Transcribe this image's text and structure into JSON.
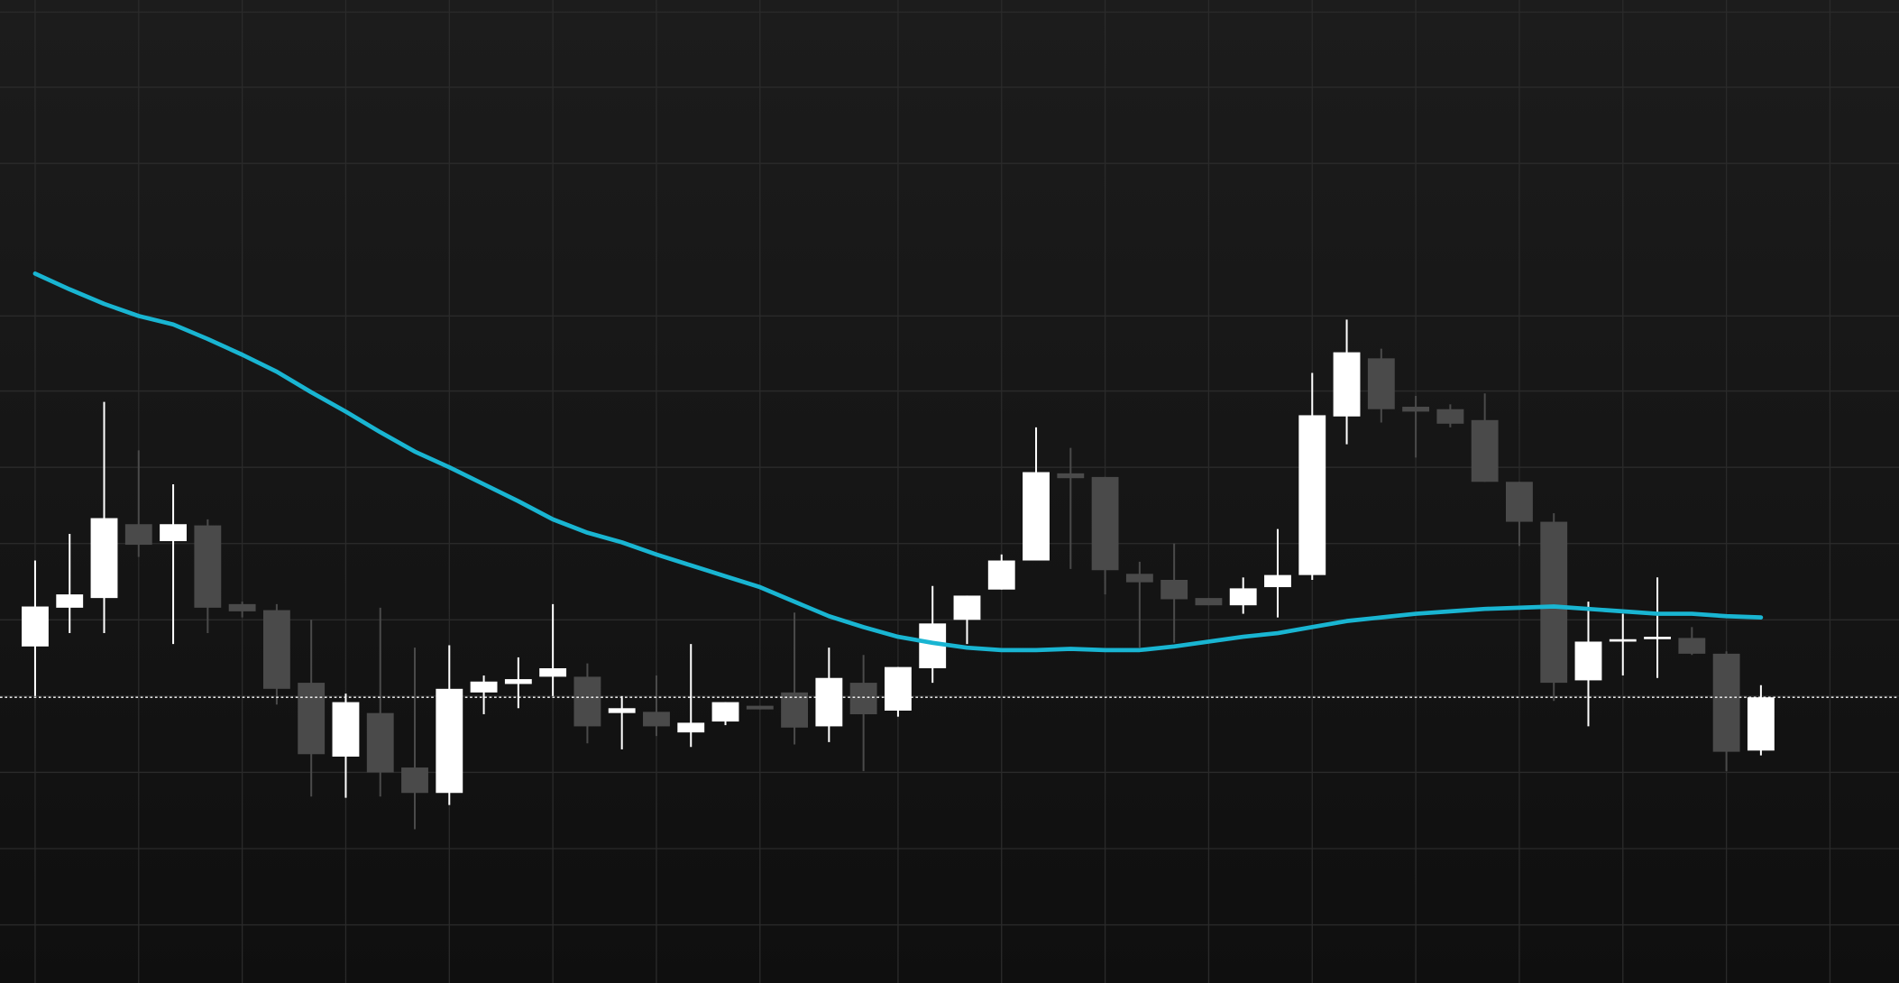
{
  "chart_data": {
    "type": "candlestick",
    "categories": [
      null,
      null,
      null,
      null,
      null,
      null,
      null,
      null,
      null,
      null,
      null,
      null,
      null,
      null,
      null,
      null,
      null,
      null,
      null,
      null,
      null,
      null,
      null,
      null,
      null,
      null,
      null,
      null,
      null,
      null,
      null,
      null,
      null,
      null,
      null,
      null,
      null,
      null,
      null,
      null,
      null,
      null,
      null,
      null,
      null,
      null,
      null,
      null,
      null,
      null,
      null
    ],
    "open": [
      278,
      310,
      318,
      379,
      365,
      378,
      313,
      308,
      248,
      187,
      223,
      178,
      157,
      240,
      247,
      253,
      253,
      223,
      224,
      207,
      216,
      229,
      240,
      212,
      248,
      225,
      260,
      300,
      325,
      349,
      421,
      418,
      338,
      333,
      318,
      312,
      327,
      337,
      468,
      516,
      476,
      474,
      465,
      414,
      381,
      250,
      282,
      284,
      285,
      272,
      192
    ],
    "high": [
      349,
      371,
      480,
      440,
      412,
      383,
      315,
      313,
      300,
      239,
      310,
      277,
      279,
      254,
      269,
      313,
      264,
      237,
      254,
      280,
      232,
      229,
      306,
      277,
      271,
      261,
      328,
      320,
      354,
      459,
      442,
      418,
      348,
      363,
      318,
      335,
      375,
      504,
      548,
      524,
      485,
      478,
      487,
      414,
      388,
      315,
      305,
      335,
      294,
      274,
      246
    ],
    "low": [
      237,
      289,
      289,
      352,
      280,
      289,
      302,
      230,
      154,
      153,
      154,
      127,
      147,
      222,
      227,
      237,
      198,
      193,
      204,
      195,
      213,
      226,
      197,
      199,
      175,
      220,
      248,
      280,
      325,
      349,
      342,
      321,
      277,
      281,
      312,
      305,
      302,
      333,
      445,
      463,
      434,
      459,
      414,
      361,
      233,
      212,
      254,
      252,
      271,
      175,
      188
    ],
    "close": [
      311,
      321,
      384,
      362,
      379,
      310,
      307,
      243,
      189,
      232,
      174,
      157,
      243,
      249,
      251,
      260,
      212,
      227,
      212,
      215,
      232,
      226,
      211,
      252,
      222,
      261,
      297,
      320,
      349,
      422,
      417,
      341,
      331,
      317,
      312,
      326,
      337,
      469,
      521,
      474,
      472,
      462,
      414,
      381,
      248,
      282,
      284,
      286,
      272,
      191,
      236
    ],
    "line_values": [
      586,
      573,
      561,
      551,
      544,
      532,
      519,
      505,
      488,
      472,
      455,
      439,
      426,
      412,
      398,
      383,
      372,
      364,
      354,
      345,
      336,
      327,
      315,
      303,
      294,
      286,
      281,
      277,
      275,
      275,
      276,
      275,
      275,
      278,
      282,
      286,
      289,
      294,
      299,
      302,
      305,
      307,
      309,
      310,
      311,
      309,
      307,
      305,
      305,
      303,
      302
    ],
    "line_color": "#19b5d2",
    "up_color": "#ffffff",
    "down_color": "#4a4a4a",
    "last_price_line": true,
    "ylim": [
      0,
      812
    ],
    "yticks": [
      48,
      111,
      174,
      237,
      300,
      363,
      426,
      489,
      551,
      677,
      740,
      802
    ],
    "xlim": [
      -1.0175,
      54
    ],
    "xticks": [
      0,
      3,
      6,
      9,
      12,
      15,
      18,
      21,
      25,
      28,
      31,
      34,
      37,
      40,
      43,
      46,
      49,
      52
    ],
    "grid": true
  }
}
